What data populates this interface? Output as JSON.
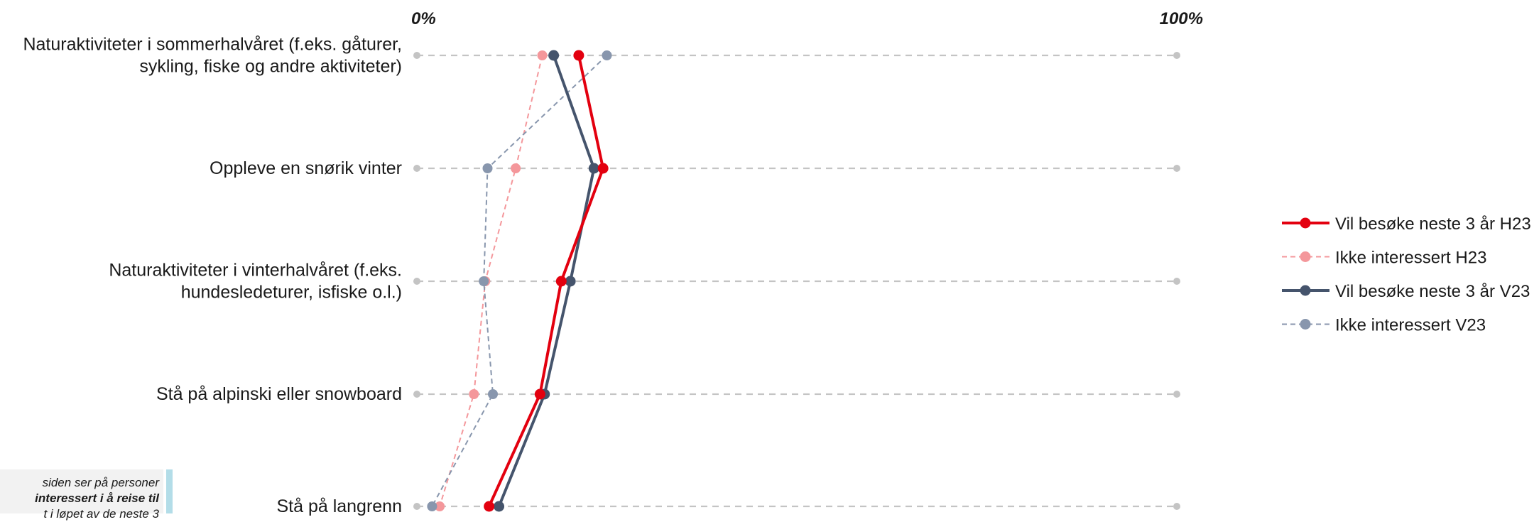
{
  "chart_data": {
    "type": "line",
    "orientation": "horizontal",
    "axis_min_label": "0%",
    "axis_max_label": "100%",
    "xlim": [
      0,
      100
    ],
    "categories": [
      [
        "Naturaktiviteter i sommerhalvåret (f.eks. gåturer,",
        "sykling, fiske og andre aktiviteter)"
      ],
      [
        "Oppleve en snørik vinter"
      ],
      [
        "Naturaktiviteter i vinterhalvåret (f.eks.",
        "hundesledeturer, isfiske o.l.)"
      ],
      [
        "Stå på alpinski eller snowboard"
      ],
      [
        "Stå på langrenn"
      ]
    ],
    "series": [
      {
        "name": "Vil besøke neste 3 år H23",
        "values": [
          21.3,
          24.5,
          19.0,
          16.2,
          9.5
        ],
        "color": "#e3000f",
        "style": "solid"
      },
      {
        "name": "Ikke interessert H23",
        "values": [
          16.5,
          13.0,
          9.0,
          7.5,
          3.0
        ],
        "color": "#f4979b",
        "style": "dashed"
      },
      {
        "name": "Vil besøke neste 3 år V23",
        "values": [
          18.0,
          23.3,
          20.2,
          16.8,
          10.8
        ],
        "color": "#45546c",
        "style": "solid"
      },
      {
        "name": "Ikke interessert V23",
        "values": [
          25.0,
          9.3,
          8.8,
          10.0,
          2.0
        ],
        "color": "#8896ad",
        "style": "dashed"
      }
    ],
    "grid_color": "#c4c4c4",
    "legend_position": "right"
  },
  "note": {
    "line1": "siden ser på personer",
    "line2_bold": "interessert i å reise til",
    "line3": "t i løpet av de neste 3"
  }
}
